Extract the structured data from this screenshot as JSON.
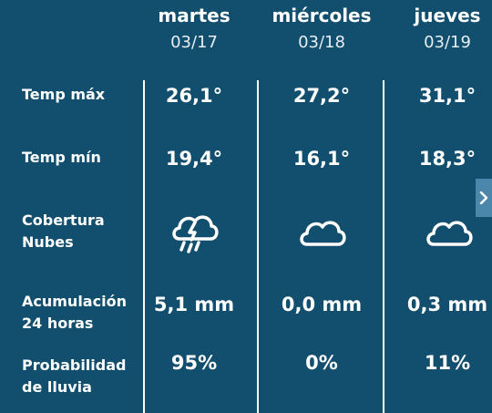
{
  "days": [
    {
      "name": "martes",
      "date": "03/17",
      "max": "26,1°",
      "min": "19,4°",
      "clouds_icon": "storm-rain-icon",
      "accum": "5,1 mm",
      "prob": "95%"
    },
    {
      "name": "miércoles",
      "date": "03/18",
      "max": "27,2°",
      "min": "16,1°",
      "clouds_icon": "cloud-icon",
      "accum": "0,0 mm",
      "prob": "0%"
    },
    {
      "name": "jueves",
      "date": "03/19",
      "max": "31,1°",
      "min": "18,3°",
      "clouds_icon": "cloud-icon",
      "accum": "0,3 mm",
      "prob": "11%"
    }
  ],
  "labels": {
    "temp_max": "Temp máx",
    "temp_min": "Temp mín",
    "cobertura_1": "Cobertura",
    "cobertura_2": "Nubes",
    "acumulacion_1": "Acumulación",
    "acumulacion_2": "24 horas",
    "probabilidad_1": "Probabilidad",
    "probabilidad_2": "de lluvia"
  },
  "nav": {
    "next_icon": "chevron-right-icon"
  },
  "colors": {
    "background": "#124e6e",
    "text": "#ffffff",
    "nav_button": "#4b86ab"
  }
}
